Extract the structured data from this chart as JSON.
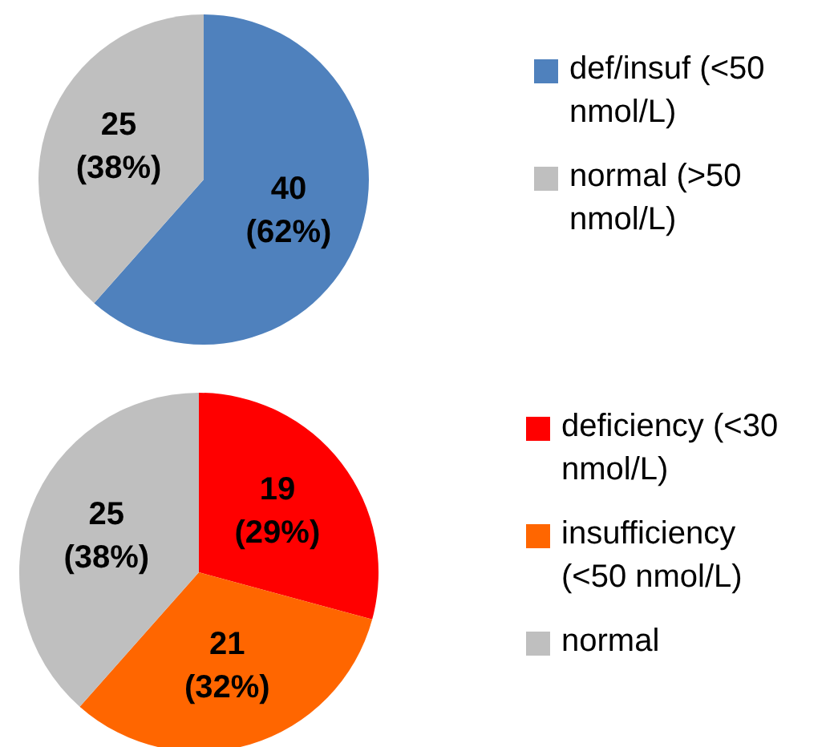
{
  "chart_data": [
    {
      "type": "pie",
      "categories": [
        "def/insuf (<50 nmol/L)",
        "normal (>50 nmol/L)"
      ],
      "values": [
        40,
        25
      ],
      "colors": [
        "#4f81bd",
        "#bfbfbf"
      ],
      "value_labels": [
        "40 (62%)",
        "25 (38%)"
      ],
      "legend": "right"
    },
    {
      "type": "pie",
      "categories": [
        "deficiency (<30 nmol/L)",
        "insufficiency (<50 nmol/L)",
        "normal"
      ],
      "values": [
        19,
        21,
        25
      ],
      "colors": [
        "#ff0000",
        "#ff6600",
        "#bfbfbf"
      ],
      "value_labels": [
        "19 (29%)",
        "21 (32%)",
        "25 (38%)"
      ],
      "legend": "right"
    }
  ]
}
